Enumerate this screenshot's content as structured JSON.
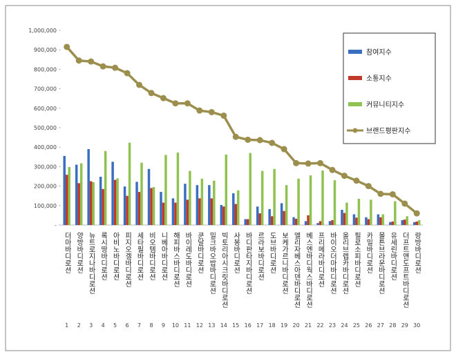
{
  "chart_data": {
    "type": "bar-line",
    "categories": [
      "더마바디로션",
      "양방바디로션",
      "뉴트로지나바디로션",
      "록시땅바디로션",
      "아비노바디로션",
      "피지오겔바디로션",
      "세타필바디로션",
      "비오템바디로션",
      "니베아바디로션",
      "해피바스바디로션",
      "바이레도바디로션",
      "쿤달바디로션",
      "밀크바오밥바디로션",
      "빅토리아시크릿바디로션",
      "사봉바디로션",
      "바디판타지바디로션",
      "르라보바디로션",
      "도브바디로션",
      "보케가르니바디로션",
      "엘리자베스아덴바디로션",
      "베스엔바디웍스바디로션",
      "프리메라바디로션",
      "바이오더마바디로션",
      "올리브렙카바디로션",
      "필로소피바디로션",
      "카밀바디로션",
      "몰튼브라운바디로션",
      "유세린바디로션",
      "더프트앤도프트바디로션",
      "랑방바디로션"
    ],
    "ranks": [
      1,
      2,
      3,
      4,
      5,
      6,
      7,
      8,
      9,
      10,
      11,
      12,
      13,
      14,
      15,
      16,
      17,
      18,
      19,
      20,
      21,
      22,
      23,
      24,
      25,
      26,
      27,
      28,
      29,
      30
    ],
    "series": [
      {
        "name": "참여지수",
        "color": "#3a6fbf",
        "kind": "bar",
        "values": [
          355000,
          310000,
          390000,
          248000,
          325000,
          198000,
          222000,
          288000,
          170000,
          137000,
          212000,
          205000,
          205000,
          103000,
          163000,
          30000,
          95000,
          82000,
          112000,
          40000,
          20000,
          10000,
          20000,
          78000,
          55000,
          40000,
          55000,
          15000,
          25000,
          15000
        ]
      },
      {
        "name": "소통지수",
        "color": "#c0392b",
        "kind": "bar",
        "values": [
          258000,
          215000,
          225000,
          185000,
          232000,
          150000,
          170000,
          190000,
          115000,
          115000,
          130000,
          137000,
          137000,
          95000,
          108000,
          30000,
          60000,
          45000,
          72000,
          32000,
          50000,
          20000,
          25000,
          62000,
          38000,
          30000,
          40000,
          18000,
          28000,
          18000
        ]
      },
      {
        "name": "커뮤니티지수",
        "color": "#8fc250",
        "kind": "bar",
        "values": [
          298000,
          317000,
          220000,
          380000,
          240000,
          423000,
          320000,
          195000,
          360000,
          372000,
          278000,
          238000,
          228000,
          362000,
          178000,
          370000,
          278000,
          288000,
          205000,
          238000,
          255000,
          280000,
          230000,
          115000,
          135000,
          130000,
          55000,
          122000,
          45000,
          25000
        ]
      },
      {
        "name": "브랜드평판지수",
        "color": "#9c8f4e",
        "kind": "line",
        "values": [
          915000,
          845000,
          840000,
          815000,
          808000,
          780000,
          720000,
          678000,
          652000,
          625000,
          625000,
          588000,
          580000,
          562000,
          453000,
          438000,
          436000,
          422000,
          390000,
          318000,
          316000,
          318000,
          283000,
          253000,
          228000,
          200000,
          160000,
          158000,
          110000,
          60000
        ]
      }
    ],
    "ylim": [
      0,
      1000000
    ],
    "yticks": [
      {
        "value": 0,
        "label": "-"
      },
      {
        "value": 100000,
        "label": "100,000"
      },
      {
        "value": 200000,
        "label": "200,000"
      },
      {
        "value": 300000,
        "label": "300,000"
      },
      {
        "value": 400000,
        "label": "400,000"
      },
      {
        "value": 500000,
        "label": "500,000"
      },
      {
        "value": 600000,
        "label": "600,000"
      },
      {
        "value": 700000,
        "label": "700,000"
      },
      {
        "value": 800000,
        "label": "800,000"
      },
      {
        "value": 900000,
        "label": "900,000"
      },
      {
        "value": 1000000,
        "label": "1,000,000"
      }
    ]
  }
}
